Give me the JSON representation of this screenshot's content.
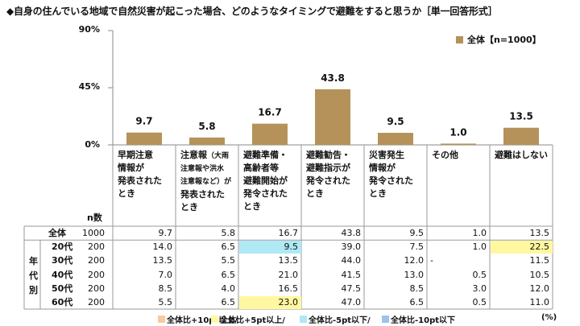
{
  "title": "◆自身の住んでいる地域で自然災害が起こった場合、どのようなタイミングで避難をすると思うか［単一回答形式］",
  "legend": {
    "label": "全体【n=1000】",
    "color": "#b5925a"
  },
  "chart_data": {
    "type": "bar",
    "ylim": [
      0,
      90
    ],
    "yticks": [
      "90%",
      "45%",
      "0%"
    ],
    "categories": [
      "早期注意情報が発表されたとき",
      "注意報（大雨注意報や洪水注意報など）が発表されたとき",
      "避難準備・高齢者等避難開始が発令されたとき",
      "避難勧告・避難指示が発令されたとき",
      "災害発生情報が発令されたとき",
      "その他",
      "避難はしない"
    ],
    "series": [
      {
        "name": "全体【n=1000】",
        "values": [
          9.7,
          5.8,
          16.7,
          43.8,
          9.5,
          1.0,
          13.5
        ]
      }
    ]
  },
  "categories_display": [
    {
      "lines": [
        "早期注意",
        "情報が",
        "発表された",
        "とき"
      ]
    },
    {
      "lines": [
        "注意報",
        "",
        "",
        "発表された",
        "とき"
      ],
      "inline_sub": "（大雨",
      "subs": [
        "注意報や洪水",
        "注意報など）が"
      ]
    },
    {
      "lines": [
        "避難準備・",
        "高齢者等",
        "避難開始が",
        "発令された",
        "とき"
      ]
    },
    {
      "lines": [
        "避難勧告・",
        "避難指示が",
        "発令された",
        "とき"
      ]
    },
    {
      "lines": [
        "災害発生",
        "情報が",
        "発令された",
        "とき"
      ]
    },
    {
      "lines": [
        "その他"
      ]
    },
    {
      "lines": [
        "避難はしない"
      ]
    }
  ],
  "table": {
    "n_header": "n数",
    "group_label": "年代別",
    "rows": [
      {
        "label": "全体",
        "n": "1000",
        "values": [
          "9.7",
          "5.8",
          "16.7",
          "43.8",
          "9.5",
          "1.0",
          "13.5"
        ],
        "hl": [
          "",
          "",
          "",
          "",
          "",
          "",
          ""
        ]
      },
      {
        "label": "20代",
        "n": "200",
        "values": [
          "14.0",
          "6.5",
          "9.5",
          "39.0",
          "7.5",
          "1.0",
          "22.5"
        ],
        "hl": [
          "",
          "",
          "cyan",
          "",
          "",
          "",
          "yellow"
        ]
      },
      {
        "label": "30代",
        "n": "200",
        "values": [
          "13.5",
          "5.5",
          "13.5",
          "44.0",
          "12.0",
          "-",
          "11.5"
        ],
        "hl": [
          "",
          "",
          "",
          "",
          "",
          "",
          ""
        ]
      },
      {
        "label": "40代",
        "n": "200",
        "values": [
          "7.0",
          "6.5",
          "21.0",
          "41.5",
          "13.0",
          "0.5",
          "10.5"
        ],
        "hl": [
          "",
          "",
          "",
          "",
          "",
          "",
          ""
        ]
      },
      {
        "label": "50代",
        "n": "200",
        "values": [
          "8.5",
          "4.0",
          "16.5",
          "47.5",
          "8.5",
          "3.0",
          "12.0"
        ],
        "hl": [
          "",
          "",
          "",
          "",
          "",
          "",
          ""
        ]
      },
      {
        "label": "60代",
        "n": "200",
        "values": [
          "5.5",
          "6.5",
          "23.0",
          "47.0",
          "6.5",
          "0.5",
          "11.0"
        ],
        "hl": [
          "",
          "",
          "yellow",
          "",
          "",
          "",
          ""
        ]
      }
    ]
  },
  "footnote": {
    "items": [
      {
        "label": "全体比+10pt以上/",
        "color": "#f8c9a0"
      },
      {
        "label": "全体比+5pt以上/",
        "color": "#fff8a0"
      },
      {
        "label": "全体比-5pt以下/",
        "color": "#aee9f5"
      },
      {
        "label": "全体比-10pt以下",
        "color": "#9cc3ec"
      }
    ],
    "unit": "(%)"
  }
}
